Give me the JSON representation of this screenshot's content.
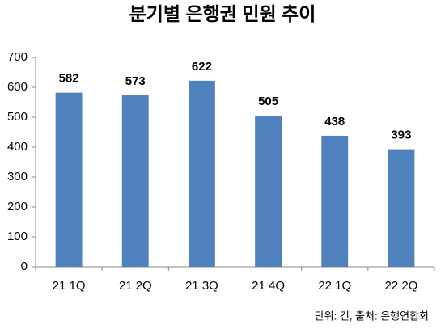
{
  "chart_data": {
    "type": "bar",
    "title": "분기별 은행권 민원 추이",
    "categories": [
      "21 1Q",
      "21 2Q",
      "21 3Q",
      "21 4Q",
      "22 1Q",
      "22 2Q"
    ],
    "values": [
      582,
      573,
      622,
      505,
      438,
      393
    ],
    "color": "#4f81bd",
    "ylim": [
      0,
      700
    ],
    "yticks": [
      0,
      100,
      200,
      300,
      400,
      500,
      600,
      700
    ],
    "grid": false,
    "note": "단위: 건, 출처: 은행연합회"
  }
}
